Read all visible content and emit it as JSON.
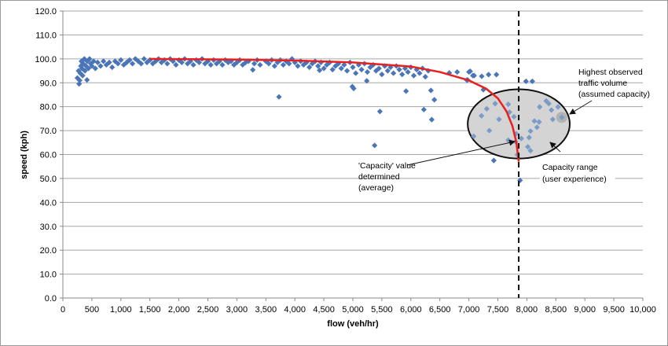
{
  "chart_data": {
    "type": "scatter",
    "title": "",
    "xlabel": "flow (veh/hr)",
    "ylabel": "speed (kph)",
    "xlim": [
      0,
      10000
    ],
    "ylim": [
      0,
      120
    ],
    "grid": "horizontal",
    "legend": "none",
    "x_ticks": [
      "0",
      "500",
      "1,000",
      "1,500",
      "2,000",
      "2,500",
      "3,000",
      "3,500",
      "4,000",
      "4,500",
      "5,000",
      "5,500",
      "6,000",
      "6,500",
      "7,000",
      "7,500",
      "8,000",
      "8,500",
      "9,000",
      "9,500",
      "10,000"
    ],
    "y_ticks": [
      "0.0",
      "10.0",
      "20.0",
      "30.0",
      "40.0",
      "50.0",
      "60.0",
      "70.0",
      "80.0",
      "90.0",
      "100.0",
      "110.0",
      "120.0"
    ],
    "colors": {
      "points": "#4a76b8",
      "curve": "#e8201f",
      "ellipse_fill": "#d4d4d4",
      "grid": "#a6a6a6"
    },
    "series": [
      {
        "type": "scatter",
        "marker": "diamond",
        "points": [
          [
            250,
            92
          ],
          [
            270,
            95
          ],
          [
            280,
            89.5
          ],
          [
            290,
            91
          ],
          [
            300,
            94
          ],
          [
            310,
            97
          ],
          [
            320,
            99
          ],
          [
            330,
            96
          ],
          [
            340,
            93
          ],
          [
            350,
            98
          ],
          [
            370,
            100
          ],
          [
            380,
            95
          ],
          [
            400,
            97
          ],
          [
            420,
            99
          ],
          [
            440,
            96
          ],
          [
            460,
            100
          ],
          [
            480,
            98
          ],
          [
            500,
            97
          ],
          [
            530,
            99
          ],
          [
            560,
            96
          ],
          [
            600,
            98.5
          ],
          [
            650,
            97
          ],
          [
            700,
            99
          ],
          [
            750,
            97.5
          ],
          [
            800,
            98.5
          ],
          [
            850,
            96.5
          ],
          [
            900,
            99
          ],
          [
            950,
            98
          ],
          [
            1000,
            99.5
          ],
          [
            1050,
            97.5
          ],
          [
            1100,
            98.5
          ],
          [
            1150,
            99.5
          ],
          [
            1200,
            98
          ],
          [
            1250,
            100
          ],
          [
            1300,
            99
          ],
          [
            1350,
            98
          ],
          [
            1400,
            100
          ],
          [
            1450,
            98.5
          ],
          [
            1500,
            99.5
          ],
          [
            1550,
            98
          ],
          [
            1600,
            99
          ],
          [
            1650,
            100
          ],
          [
            1700,
            98.5
          ],
          [
            1750,
            99.5
          ],
          [
            1800,
            98
          ],
          [
            1850,
            100
          ],
          [
            1900,
            99
          ],
          [
            1950,
            97.5
          ],
          [
            2000,
            99.5
          ],
          [
            2050,
            98.5
          ],
          [
            2100,
            100
          ],
          [
            2150,
            98
          ],
          [
            2200,
            99
          ],
          [
            2250,
            97.5
          ],
          [
            2300,
            99.5
          ],
          [
            2350,
            98.5
          ],
          [
            2400,
            100
          ],
          [
            2450,
            98
          ],
          [
            2500,
            99
          ],
          [
            2550,
            97.5
          ],
          [
            2600,
            99.5
          ],
          [
            2650,
            98
          ],
          [
            2700,
            99
          ],
          [
            2750,
            97.5
          ],
          [
            2800,
            99.5
          ],
          [
            2850,
            98.5
          ],
          [
            2900,
            99
          ],
          [
            2950,
            97.5
          ],
          [
            3000,
            98.5
          ],
          [
            3050,
            99.5
          ],
          [
            3100,
            97.5
          ],
          [
            3150,
            98.5
          ],
          [
            3200,
            99
          ],
          [
            3300,
            98
          ],
          [
            3350,
            99.5
          ],
          [
            3400,
            97.5
          ],
          [
            3500,
            99
          ],
          [
            3550,
            98
          ],
          [
            3600,
            99.5
          ],
          [
            3650,
            97
          ],
          [
            3700,
            98.5
          ],
          [
            3750,
            99.5
          ],
          [
            3800,
            97.5
          ],
          [
            3850,
            99
          ],
          [
            3900,
            98
          ],
          [
            3950,
            100
          ],
          [
            4000,
            98.5
          ],
          [
            4050,
            97
          ],
          [
            4100,
            99
          ],
          [
            4150,
            97.5
          ],
          [
            4200,
            98.5
          ],
          [
            4250,
            96.5
          ],
          [
            4300,
            98
          ],
          [
            4350,
            99
          ],
          [
            4400,
            97
          ],
          [
            4450,
            98.5
          ],
          [
            4500,
            96
          ],
          [
            4550,
            97.5
          ],
          [
            4600,
            98.5
          ],
          [
            4650,
            95.5
          ],
          [
            4700,
            97
          ],
          [
            4750,
            98
          ],
          [
            4800,
            96
          ],
          [
            4850,
            97.5
          ],
          [
            4900,
            95
          ],
          [
            4950,
            98.5
          ],
          [
            5000,
            96.5
          ],
          [
            5050,
            94
          ],
          [
            5100,
            97.5
          ],
          [
            5150,
            95.5
          ],
          [
            5200,
            98
          ],
          [
            5250,
            94.5
          ],
          [
            5300,
            96.5
          ],
          [
            5350,
            97.5
          ],
          [
            5400,
            95
          ],
          [
            5450,
            96
          ],
          [
            5500,
            93.5
          ],
          [
            5550,
            97
          ],
          [
            5600,
            95
          ],
          [
            5650,
            96.5
          ],
          [
            5700,
            94
          ],
          [
            5750,
            97
          ],
          [
            5800,
            95.5
          ],
          [
            5850,
            93.5
          ],
          [
            5900,
            96
          ],
          [
            5950,
            94.5
          ],
          [
            6000,
            96.5
          ],
          [
            6050,
            93
          ],
          [
            6100,
            95.5
          ],
          [
            6150,
            94
          ],
          [
            6200,
            96
          ],
          [
            6250,
            92.5
          ],
          [
            6300,
            95
          ],
          [
            416,
            91.2
          ],
          [
            3275,
            95.4
          ],
          [
            3726,
            84.1
          ],
          [
            4426,
            95.2
          ],
          [
            4991,
            88.4
          ],
          [
            5014,
            87.6
          ],
          [
            5240,
            90.8
          ],
          [
            5466,
            78.0
          ],
          [
            5375,
            63.8
          ],
          [
            5917,
            86.5
          ],
          [
            6346,
            86.8
          ],
          [
            6405,
            82.9
          ],
          [
            6224,
            78.8
          ],
          [
            6360,
            74.6
          ],
          [
            6662,
            94.1
          ],
          [
            6798,
            94.5
          ],
          [
            7023,
            94.8
          ],
          [
            6965,
            91.1
          ],
          [
            7091,
            93.0
          ],
          [
            7250,
            87.1
          ],
          [
            7222,
            92.7
          ],
          [
            7340,
            93.4
          ],
          [
            7001,
            94.5
          ],
          [
            7069,
            93.0
          ],
          [
            6978,
            91.2
          ],
          [
            7475,
            93.4
          ],
          [
            7985,
            90.6
          ],
          [
            8094,
            90.6
          ],
          [
            7453,
            81.3
          ],
          [
            7308,
            79.1
          ],
          [
            7679,
            81.0
          ],
          [
            7218,
            76.2
          ],
          [
            7520,
            74.7
          ],
          [
            7778,
            75.8
          ],
          [
            7353,
            70.0
          ],
          [
            7083,
            67.6
          ],
          [
            7679,
            66.0
          ],
          [
            7814,
            68.7
          ],
          [
            7904,
            66.7
          ],
          [
            7805,
            65.4
          ],
          [
            7836,
            59.9
          ],
          [
            7430,
            57.5
          ],
          [
            7882,
            49.2
          ],
          [
            8221,
            79.9
          ],
          [
            8333,
            82.4
          ],
          [
            8378,
            81.3
          ],
          [
            8424,
            78.6
          ],
          [
            8537,
            79.9
          ],
          [
            8446,
            74.7
          ],
          [
            8604,
            75.5
          ],
          [
            8130,
            74.0
          ],
          [
            8211,
            73.6
          ],
          [
            8175,
            71.4
          ],
          [
            8062,
            69.8
          ],
          [
            8039,
            67.1
          ],
          [
            8017,
            63.2
          ],
          [
            8062,
            61.6
          ],
          [
            7701,
            77.7
          ]
        ]
      },
      {
        "type": "line",
        "points": [
          [
            1500,
            100
          ],
          [
            3000,
            99.7
          ],
          [
            4000,
            99.3
          ],
          [
            5000,
            98.5
          ],
          [
            6000,
            96.8
          ],
          [
            6500,
            94.5
          ],
          [
            7000,
            91
          ],
          [
            7300,
            87.5
          ],
          [
            7500,
            83.5
          ],
          [
            7650,
            78
          ],
          [
            7750,
            72
          ],
          [
            7820,
            65
          ],
          [
            7860,
            57
          ]
        ]
      }
    ],
    "reference_lines": [
      {
        "orientation": "vertical",
        "x": 7860,
        "style": "dashed"
      }
    ],
    "ellipse": {
      "cx": 7860,
      "cy": 72.8,
      "rx_data": 880,
      "ry_data": 14.5
    },
    "highlight_circle": {
      "x": 8600,
      "y": 75.5
    },
    "annotations": {
      "highest": [
        "Highest observed",
        "traffic volume",
        "(assumed capacity)"
      ],
      "capacity_value": [
        "'Capacity' value",
        "determined",
        "(average)"
      ],
      "capacity_range": [
        "Capacity range",
        "(user experience)"
      ]
    }
  }
}
